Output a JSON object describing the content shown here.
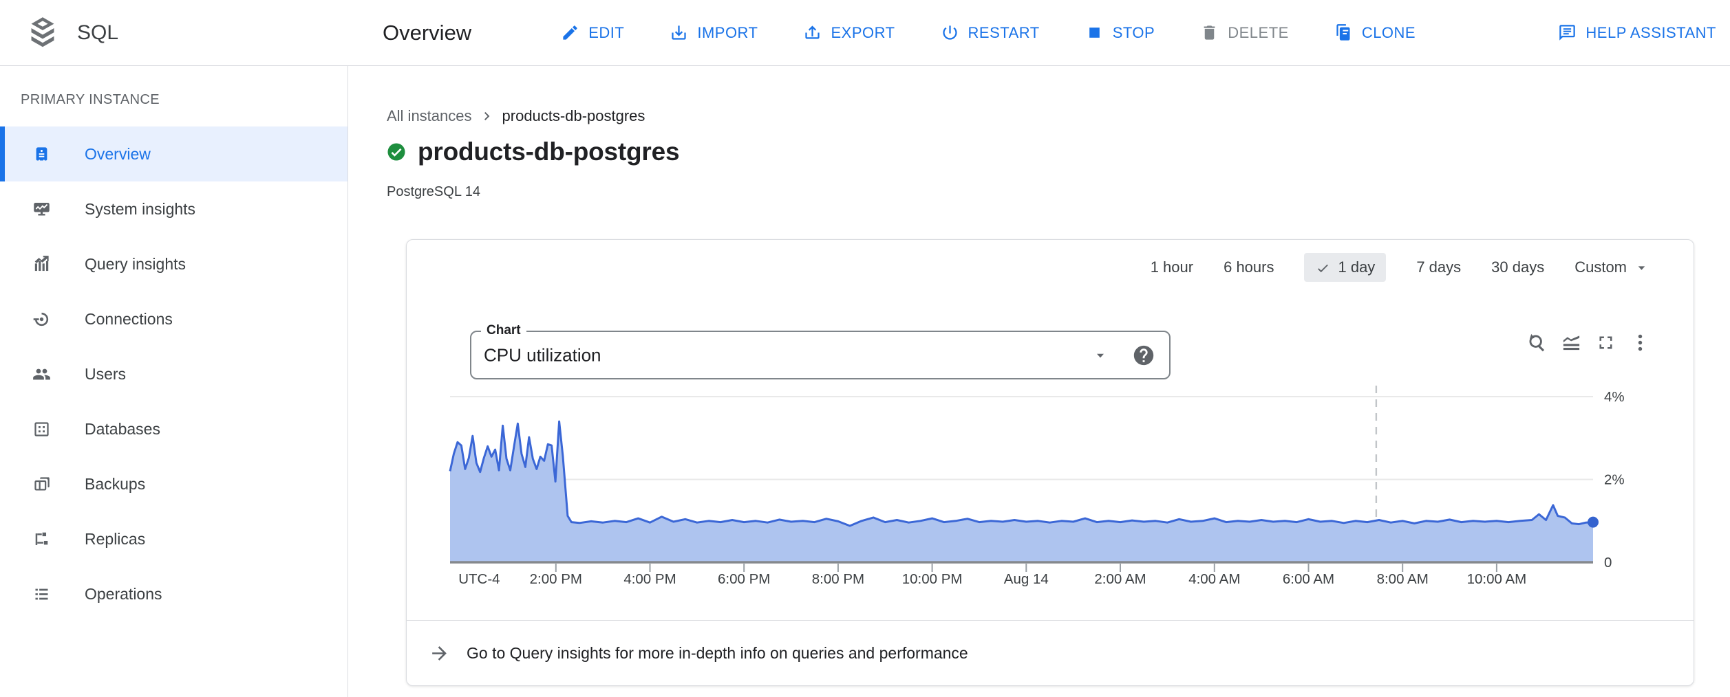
{
  "palette": {
    "blue": "#1a73e8",
    "disabled_gray": "#80868b",
    "line_blue": "#3b67d6",
    "fill_blue": "#aec4ef",
    "dot_blue": "#3563cf",
    "grid": "#e9e9e9",
    "axis_line": "#85898d",
    "tick": "#9aa0a6",
    "label_gray": "#3c4043",
    "chip_bg": "#e8eaed",
    "green": "#1e8e3e"
  },
  "header": {
    "product": "SQL",
    "page_title": "Overview",
    "actions": [
      {
        "label": "EDIT",
        "icon": "edit-icon",
        "enabled": true
      },
      {
        "label": "IMPORT",
        "icon": "import-icon",
        "enabled": true
      },
      {
        "label": "EXPORT",
        "icon": "export-icon",
        "enabled": true
      },
      {
        "label": "RESTART",
        "icon": "restart-icon",
        "enabled": true
      },
      {
        "label": "STOP",
        "icon": "stop-icon",
        "enabled": true
      },
      {
        "label": "DELETE",
        "icon": "delete-icon",
        "enabled": false
      },
      {
        "label": "CLONE",
        "icon": "clone-icon",
        "enabled": true
      },
      {
        "label": "HELP ASSISTANT",
        "icon": "help-assistant-icon",
        "enabled": true
      }
    ]
  },
  "sidebar": {
    "section": "PRIMARY INSTANCE",
    "items": [
      {
        "label": "Overview",
        "icon": "overview-icon",
        "selected": true
      },
      {
        "label": "System insights",
        "icon": "system-insights-icon",
        "selected": false
      },
      {
        "label": "Query insights",
        "icon": "query-insights-icon",
        "selected": false
      },
      {
        "label": "Connections",
        "icon": "connections-icon",
        "selected": false
      },
      {
        "label": "Users",
        "icon": "users-icon",
        "selected": false
      },
      {
        "label": "Databases",
        "icon": "databases-icon",
        "selected": false
      },
      {
        "label": "Backups",
        "icon": "backups-icon",
        "selected": false
      },
      {
        "label": "Replicas",
        "icon": "replicas-icon",
        "selected": false
      },
      {
        "label": "Operations",
        "icon": "operations-icon",
        "selected": false
      }
    ]
  },
  "content": {
    "breadcrumb_root": "All instances",
    "breadcrumb_current": "products-db-postgres",
    "instance_name": "products-db-postgres",
    "status": "running-ok",
    "version": "PostgreSQL 14"
  },
  "card": {
    "time_ranges": [
      {
        "label": "1 hour",
        "selected": false,
        "dropdown": false
      },
      {
        "label": "6 hours",
        "selected": false,
        "dropdown": false
      },
      {
        "label": "1 day",
        "selected": true,
        "dropdown": false
      },
      {
        "label": "7 days",
        "selected": false,
        "dropdown": false
      },
      {
        "label": "30 days",
        "selected": false,
        "dropdown": false
      },
      {
        "label": "Custom",
        "selected": false,
        "dropdown": true
      }
    ],
    "chart_selector": {
      "label": "Chart",
      "value": "CPU utilization"
    },
    "footer_text": "Go to Query insights for more in-depth info on queries and performance"
  },
  "chart_data": {
    "type": "area",
    "title": "CPU utilization",
    "unit": "%",
    "ylim": [
      0,
      4.3
    ],
    "x_range_hours": [
      0,
      24.3
    ],
    "grid": true,
    "legend": "none",
    "timezone_label": {
      "label": "UTC-4",
      "h": 0.62
    },
    "now_marker_h": 19.69,
    "end_dot": true,
    "y_ticks": [
      {
        "label": "4%",
        "value": 4
      },
      {
        "label": "2%",
        "value": 2
      },
      {
        "label": "0",
        "value": 0
      }
    ],
    "x_ticks": [
      {
        "label": "2:00 PM",
        "h": 2.25
      },
      {
        "label": "4:00 PM",
        "h": 4.25
      },
      {
        "label": "6:00 PM",
        "h": 6.25
      },
      {
        "label": "8:00 PM",
        "h": 8.25
      },
      {
        "label": "10:00 PM",
        "h": 10.25
      },
      {
        "label": "Aug 14",
        "h": 12.25
      },
      {
        "label": "2:00 AM",
        "h": 14.25
      },
      {
        "label": "4:00 AM",
        "h": 16.25
      },
      {
        "label": "6:00 AM",
        "h": 18.25
      },
      {
        "label": "8:00 AM",
        "h": 20.25
      },
      {
        "label": "10:00 AM",
        "h": 22.25
      }
    ],
    "points": [
      [
        0,
        2.2
      ],
      [
        0.08,
        2.62
      ],
      [
        0.16,
        2.9
      ],
      [
        0.24,
        2.82
      ],
      [
        0.32,
        2.25
      ],
      [
        0.4,
        2.52
      ],
      [
        0.48,
        3.05
      ],
      [
        0.56,
        2.4
      ],
      [
        0.64,
        2.18
      ],
      [
        0.72,
        2.52
      ],
      [
        0.8,
        2.8
      ],
      [
        0.88,
        2.55
      ],
      [
        0.96,
        2.72
      ],
      [
        1.04,
        2.22
      ],
      [
        1.12,
        3.3
      ],
      [
        1.2,
        2.5
      ],
      [
        1.28,
        2.22
      ],
      [
        1.36,
        2.8
      ],
      [
        1.44,
        3.35
      ],
      [
        1.52,
        2.62
      ],
      [
        1.6,
        2.3
      ],
      [
        1.68,
        3.02
      ],
      [
        1.76,
        2.5
      ],
      [
        1.84,
        2.25
      ],
      [
        1.92,
        2.55
      ],
      [
        2,
        2.45
      ],
      [
        2.08,
        2.85
      ],
      [
        2.16,
        2.82
      ],
      [
        2.24,
        1.95
      ],
      [
        2.32,
        3.4
      ],
      [
        2.4,
        2.55
      ],
      [
        2.5,
        1.12
      ],
      [
        2.58,
        0.97
      ],
      [
        2.75,
        0.95
      ],
      [
        3,
        0.99
      ],
      [
        3.25,
        0.96
      ],
      [
        3.5,
        1
      ],
      [
        3.75,
        0.97
      ],
      [
        4,
        1.06
      ],
      [
        4.25,
        0.96
      ],
      [
        4.5,
        1.1
      ],
      [
        4.75,
        0.98
      ],
      [
        5,
        1.04
      ],
      [
        5.25,
        0.96
      ],
      [
        5.5,
        1
      ],
      [
        5.75,
        0.97
      ],
      [
        6,
        1.02
      ],
      [
        6.25,
        0.97
      ],
      [
        6.5,
        1
      ],
      [
        6.75,
        0.96
      ],
      [
        7,
        1.03
      ],
      [
        7.25,
        0.98
      ],
      [
        7.5,
        1
      ],
      [
        7.75,
        0.97
      ],
      [
        8,
        1.05
      ],
      [
        8.25,
        0.99
      ],
      [
        8.5,
        0.88
      ],
      [
        8.75,
        1
      ],
      [
        9,
        1.08
      ],
      [
        9.25,
        0.97
      ],
      [
        9.5,
        1.02
      ],
      [
        9.75,
        0.96
      ],
      [
        10,
        1
      ],
      [
        10.25,
        1.06
      ],
      [
        10.5,
        0.97
      ],
      [
        10.75,
        1
      ],
      [
        11,
        1.05
      ],
      [
        11.25,
        0.97
      ],
      [
        11.5,
        1
      ],
      [
        11.75,
        0.98
      ],
      [
        12,
        1.02
      ],
      [
        12.25,
        0.98
      ],
      [
        12.5,
        1
      ],
      [
        12.75,
        0.96
      ],
      [
        13,
        1
      ],
      [
        13.25,
        0.98
      ],
      [
        13.5,
        1.06
      ],
      [
        13.75,
        0.97
      ],
      [
        14,
        1
      ],
      [
        14.25,
        0.97
      ],
      [
        14.5,
        1.01
      ],
      [
        14.75,
        0.98
      ],
      [
        15,
        1
      ],
      [
        15.25,
        0.96
      ],
      [
        15.5,
        1.04
      ],
      [
        15.75,
        0.98
      ],
      [
        16,
        1
      ],
      [
        16.25,
        1.06
      ],
      [
        16.5,
        0.97
      ],
      [
        16.75,
        1
      ],
      [
        17,
        0.98
      ],
      [
        17.25,
        1.02
      ],
      [
        17.5,
        0.98
      ],
      [
        17.75,
        1
      ],
      [
        18,
        0.97
      ],
      [
        18.25,
        1.04
      ],
      [
        18.5,
        0.98
      ],
      [
        18.75,
        1
      ],
      [
        19,
        0.95
      ],
      [
        19.25,
        1
      ],
      [
        19.5,
        0.97
      ],
      [
        19.75,
        1.02
      ],
      [
        20,
        0.96
      ],
      [
        20.25,
        1
      ],
      [
        20.5,
        0.94
      ],
      [
        20.75,
        1
      ],
      [
        21,
        0.98
      ],
      [
        21.25,
        1.03
      ],
      [
        21.5,
        0.97
      ],
      [
        21.75,
        1
      ],
      [
        22,
        0.98
      ],
      [
        22.25,
        1
      ],
      [
        22.5,
        0.97
      ],
      [
        22.75,
        1
      ],
      [
        23,
        1.02
      ],
      [
        23.15,
        1.16
      ],
      [
        23.3,
        1.02
      ],
      [
        23.45,
        1.38
      ],
      [
        23.55,
        1.12
      ],
      [
        23.7,
        1.08
      ],
      [
        23.85,
        0.94
      ],
      [
        24,
        0.92
      ],
      [
        24.15,
        0.96
      ],
      [
        24.3,
        0.97
      ]
    ]
  }
}
